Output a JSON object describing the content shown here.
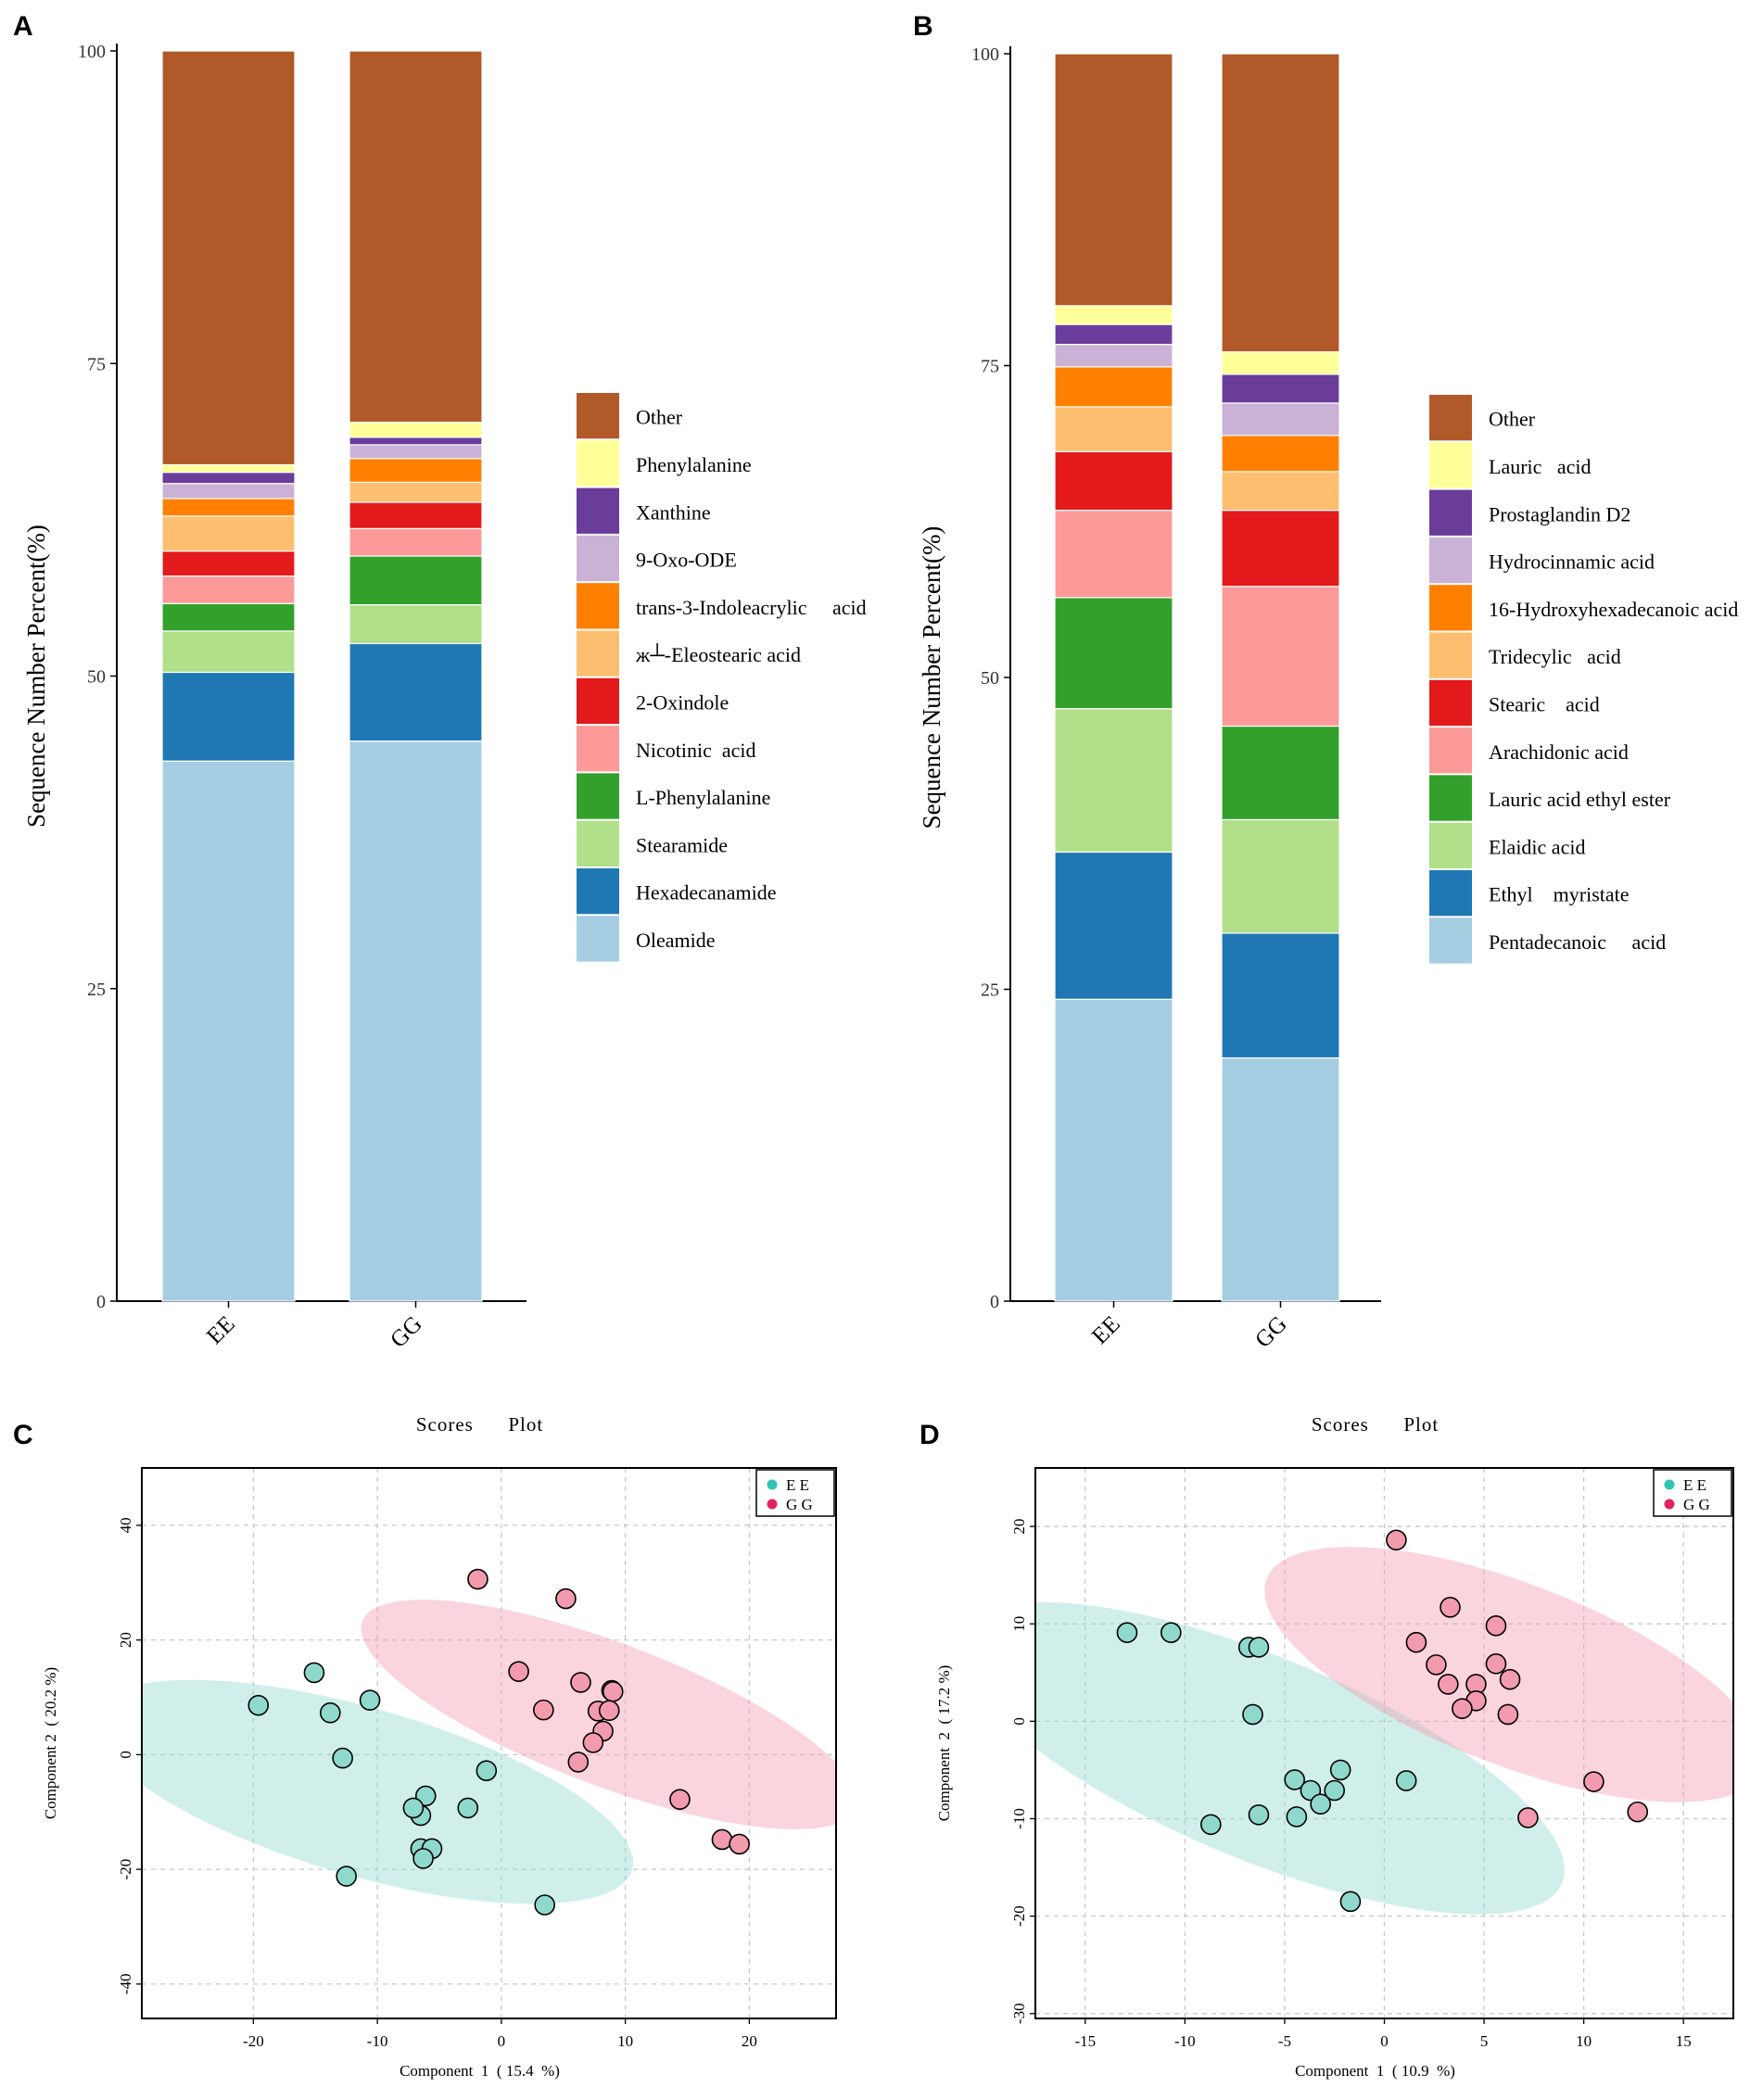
{
  "figure": {
    "panel_labels": [
      "A",
      "B",
      "C",
      "D"
    ]
  },
  "chart_data": [
    {
      "panel": "A",
      "type": "bar",
      "stacked": true,
      "title": "",
      "xlabel": "",
      "ylabel": "Sequence   Number   Percent(%)",
      "ylim": [
        0,
        100
      ],
      "yticks": [
        "0",
        "25",
        "50",
        "75",
        "100"
      ],
      "categories": [
        "EE",
        "GG"
      ],
      "legend_position": "right",
      "series": [
        {
          "name": "Oleamide",
          "color": "#a6cee3",
          "values": [
            43.2,
            44.8
          ]
        },
        {
          "name": "Hexadecanamide",
          "color": "#1f78b4",
          "values": [
            7.1,
            7.8
          ]
        },
        {
          "name": "Stearamide",
          "color": "#b2df8a",
          "values": [
            3.3,
            3.1
          ]
        },
        {
          "name": "L-Phenylalanine",
          "color": "#33a02c",
          "values": [
            2.2,
            3.9
          ]
        },
        {
          "name": "Nicotinic  acid",
          "color": "#fb9a99",
          "values": [
            2.2,
            2.2
          ]
        },
        {
          "name": "2-Oxindole",
          "color": "#e31a1c",
          "values": [
            2.0,
            2.1
          ]
        },
        {
          "name": "ж┴-Eleostearic acid",
          "color": "#fdbf6f",
          "values": [
            2.8,
            1.6
          ]
        },
        {
          "name": "trans-3-Indoleacrylic     acid",
          "color": "#ff7f00",
          "values": [
            1.4,
            1.9
          ]
        },
        {
          "name": "9-Oxo-ODE",
          "color": "#cab2d6",
          "values": [
            1.2,
            1.1
          ]
        },
        {
          "name": "Xanthine",
          "color": "#6a3d9a",
          "values": [
            0.9,
            0.6
          ]
        },
        {
          "name": "Phenylalanine",
          "color": "#ffff99",
          "values": [
            0.6,
            1.2
          ]
        },
        {
          "name": "Other",
          "color": "#b15928",
          "values": [
            33.1,
            29.7
          ]
        }
      ]
    },
    {
      "panel": "B",
      "type": "bar",
      "stacked": true,
      "title": "",
      "xlabel": "",
      "ylabel": "Sequence   Number   Percent(%)",
      "ylim": [
        0,
        100
      ],
      "yticks": [
        "0",
        "25",
        "50",
        "75",
        "100"
      ],
      "categories": [
        "EE",
        "GG"
      ],
      "legend_position": "right",
      "series": [
        {
          "name": "Pentadecanoic     acid",
          "color": "#a6cee3",
          "values": [
            24.2,
            19.5
          ]
        },
        {
          "name": "Ethyl    myristate",
          "color": "#1f78b4",
          "values": [
            11.8,
            10.0
          ]
        },
        {
          "name": "Elaidic acid",
          "color": "#b2df8a",
          "values": [
            11.5,
            9.1
          ]
        },
        {
          "name": "Lauric acid ethyl ester",
          "color": "#33a02c",
          "values": [
            8.9,
            7.5
          ]
        },
        {
          "name": "Arachidonic acid",
          "color": "#fb9a99",
          "values": [
            7.0,
            11.2
          ]
        },
        {
          "name": "Stearic    acid",
          "color": "#e31a1c",
          "values": [
            4.7,
            6.1
          ]
        },
        {
          "name": "Tridecylic   acid",
          "color": "#fdbf6f",
          "values": [
            3.6,
            3.1
          ]
        },
        {
          "name": "16-Hydroxyhexadecanoic acid",
          "color": "#ff7f00",
          "values": [
            3.2,
            2.9
          ]
        },
        {
          "name": "Hydrocinnamic acid",
          "color": "#cab2d6",
          "values": [
            1.8,
            2.6
          ]
        },
        {
          "name": "Prostaglandin D2",
          "color": "#6a3d9a",
          "values": [
            1.6,
            2.3
          ]
        },
        {
          "name": "Lauric   acid",
          "color": "#ffff99",
          "values": [
            1.5,
            1.8
          ]
        },
        {
          "name": "Other",
          "color": "#b15928",
          "values": [
            20.2,
            23.9
          ]
        }
      ]
    },
    {
      "panel": "C",
      "type": "scatter",
      "title": "Scores      Plot",
      "xlabel": "Component  1  ( 15.4  %)",
      "ylabel": "Component 2  ( 20.2 %)",
      "xlim": [
        -29,
        27
      ],
      "ylim": [
        -46,
        50
      ],
      "xticks": [
        -20,
        -10,
        0,
        10,
        20
      ],
      "xtick_labels": [
        "-20",
        "-10",
        "0",
        "10",
        "20"
      ],
      "yticks": [
        -40,
        -20,
        0,
        20,
        40
      ],
      "ytick_labels": [
        "-40",
        "-20",
        "0",
        "20",
        "40"
      ],
      "legend_position": "top-right",
      "groups": [
        {
          "name": "E E",
          "color": "#2ec4b6",
          "fill": "#8fd9cc",
          "ellipse": {
            "cx": -11.2,
            "cy": -6.5,
            "rx": 26.5,
            "ry": 12.5,
            "angle_deg": -40
          },
          "points": [
            [
              -19.6,
              8.6
            ],
            [
              -15.1,
              14.3
            ],
            [
              -13.8,
              7.3
            ],
            [
              -12.8,
              -0.6
            ],
            [
              -10.6,
              9.5
            ],
            [
              -6.1,
              -7.2
            ],
            [
              -6.5,
              -10.6
            ],
            [
              -7.1,
              -9.3
            ],
            [
              -2.7,
              -9.3
            ],
            [
              -1.2,
              -2.8
            ],
            [
              -6.5,
              -16.4
            ],
            [
              -5.6,
              -16.4
            ],
            [
              -6.3,
              -18.1
            ],
            [
              -12.5,
              -21.2
            ],
            [
              3.5,
              -26.2
            ]
          ]
        },
        {
          "name": "G G",
          "color": "#e0245e",
          "fill": "#f29aae",
          "ellipse": {
            "cx": 8.7,
            "cy": 7.0,
            "rx": 26.5,
            "ry": 10.0,
            "angle_deg": -45
          },
          "points": [
            [
              -1.9,
              30.6
            ],
            [
              5.2,
              27.2
            ],
            [
              1.4,
              14.5
            ],
            [
              6.4,
              12.6
            ],
            [
              8.9,
              11.2
            ],
            [
              9.0,
              11.0
            ],
            [
              3.4,
              7.8
            ],
            [
              7.8,
              7.6
            ],
            [
              8.7,
              7.7
            ],
            [
              8.2,
              4.1
            ],
            [
              7.4,
              2.1
            ],
            [
              6.2,
              -1.3
            ],
            [
              14.4,
              -7.8
            ],
            [
              17.8,
              -14.8
            ],
            [
              19.2,
              -15.6
            ]
          ]
        }
      ]
    },
    {
      "panel": "D",
      "type": "scatter",
      "title": "Scores      Plot",
      "xlabel": "Component  1  ( 10.9  %)",
      "ylabel": "Component  2  ( 17.2 %)",
      "xlim": [
        -17.5,
        17.5
      ],
      "ylim": [
        -30.5,
        26
      ],
      "xticks": [
        -15,
        -10,
        -5,
        0,
        5,
        10,
        15
      ],
      "xtick_labels": [
        "-15",
        "-10",
        "-5",
        "0",
        "5",
        "10",
        "15"
      ],
      "yticks": [
        -30,
        -20,
        -10,
        0,
        10,
        20
      ],
      "ytick_labels": [
        "-30",
        "-20",
        "-10",
        "0",
        "10",
        "20"
      ],
      "legend_position": "top-right",
      "groups": [
        {
          "name": "E E",
          "color": "#2ec4b6",
          "fill": "#8fd9cc",
          "ellipse": {
            "cx": -6.2,
            "cy": -3.8,
            "rx": 20.5,
            "ry": 8.3,
            "angle_deg": -47
          },
          "points": [
            [
              -12.9,
              9.1
            ],
            [
              -10.7,
              9.1
            ],
            [
              -6.8,
              7.6
            ],
            [
              -6.3,
              7.6
            ],
            [
              -6.6,
              0.7
            ],
            [
              -8.7,
              -10.6
            ],
            [
              -6.3,
              -9.6
            ],
            [
              -4.5,
              -6.0
            ],
            [
              -4.4,
              -9.8
            ],
            [
              -3.7,
              -7.1
            ],
            [
              -3.2,
              -8.5
            ],
            [
              -2.5,
              -7.1
            ],
            [
              -2.2,
              -5.0
            ],
            [
              -1.7,
              -18.5
            ],
            [
              1.1,
              -6.1
            ]
          ]
        },
        {
          "name": "G G",
          "color": "#e0245e",
          "fill": "#f29aae",
          "ellipse": {
            "cx": 6.5,
            "cy": 4.8,
            "rx": 16.5,
            "ry": 7.5,
            "angle_deg": -47
          },
          "points": [
            [
              0.6,
              18.6
            ],
            [
              3.3,
              11.7
            ],
            [
              1.6,
              8.1
            ],
            [
              5.6,
              9.8
            ],
            [
              2.6,
              5.8
            ],
            [
              5.6,
              5.9
            ],
            [
              3.2,
              3.8
            ],
            [
              4.6,
              3.8
            ],
            [
              6.3,
              4.3
            ],
            [
              4.6,
              2.1
            ],
            [
              3.9,
              1.3
            ],
            [
              6.2,
              0.7
            ],
            [
              10.5,
              -6.2
            ],
            [
              7.2,
              -9.9
            ],
            [
              12.7,
              -9.3
            ]
          ]
        }
      ]
    }
  ]
}
